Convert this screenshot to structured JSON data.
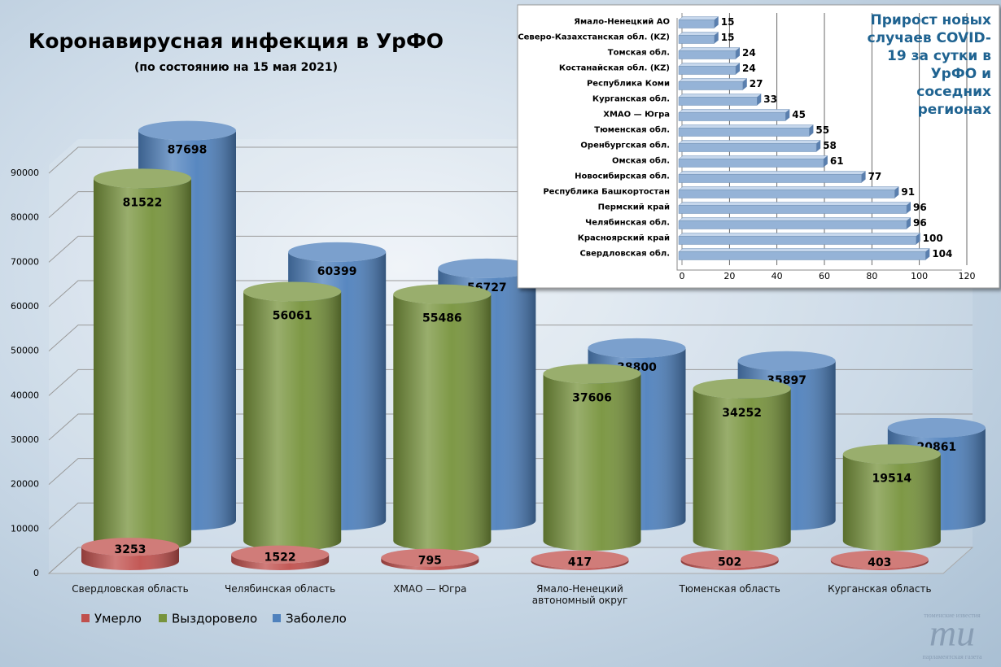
{
  "chart_data": [
    {
      "type": "cylinder",
      "title": "Коронавирусная инфекция в УрФО",
      "subtitle": "(по состоянию на 15 мая 2021)",
      "categories": [
        "Свердловская область",
        "Челябинская область",
        "ХМАО — Югра",
        "Ямало-Ненецкий автономный округ",
        "Тюменская область",
        "Курганская область"
      ],
      "series": [
        {
          "name": "Умерло",
          "color": "#c0504d",
          "values": [
            3253,
            1522,
            795,
            417,
            502,
            403
          ]
        },
        {
          "name": "Выздоровело",
          "color": "#77933c",
          "values": [
            81522,
            56061,
            55486,
            37606,
            34252,
            19514
          ]
        },
        {
          "name": "Заболело",
          "color": "#4f81bd",
          "values": [
            87698,
            60399,
            56727,
            38800,
            35897,
            20861
          ]
        }
      ],
      "ylim": [
        0,
        90000
      ],
      "yticks": [
        0,
        10000,
        20000,
        30000,
        40000,
        50000,
        60000,
        70000,
        80000,
        90000
      ],
      "grid": true,
      "legend": "bottom-left"
    },
    {
      "type": "hbar",
      "title": "Прирост новых случаев COVID-19 за сутки в УрФО и соседних регионах",
      "categories": [
        "Ямало-Ненецкий АО",
        "Северо-Казахстанская обл. (KZ)",
        "Томская обл.",
        "Костанайская обл. (KZ)",
        "Республика Коми",
        "Курганская обл.",
        "ХМАО — Югра",
        "Тюменская обл.",
        "Оренбургская обл.",
        "Омская обл.",
        "Новосибирская обл.",
        "Республика Башкортостан",
        "Пермский край",
        "Челябинская обл.",
        "Красноярский край",
        "Свердловская обл."
      ],
      "values": [
        15,
        15,
        24,
        24,
        27,
        33,
        45,
        55,
        58,
        61,
        77,
        91,
        96,
        96,
        100,
        104
      ],
      "color": "#95b3d7",
      "xlim": [
        0,
        120
      ],
      "xticks": [
        0,
        20,
        40,
        60,
        80,
        100,
        120
      ],
      "grid": true
    }
  ],
  "watermark": {
    "top": "тюменские известия",
    "logo": "ти",
    "bottom": "парламентская газета"
  }
}
